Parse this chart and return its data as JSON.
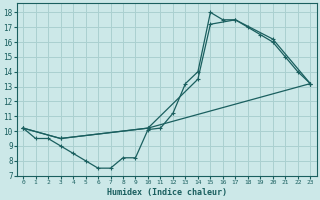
{
  "xlabel": "Humidex (Indice chaleur)",
  "bg_color": "#cce8e8",
  "grid_color": "#aad0d0",
  "line_color": "#1a5f5f",
  "xlim": [
    -0.5,
    23.5
  ],
  "ylim": [
    7,
    18.6
  ],
  "yticks": [
    7,
    8,
    9,
    10,
    11,
    12,
    13,
    14,
    15,
    16,
    17,
    18
  ],
  "xticks": [
    0,
    1,
    2,
    3,
    4,
    5,
    6,
    7,
    8,
    9,
    10,
    11,
    12,
    13,
    14,
    15,
    16,
    17,
    18,
    19,
    20,
    21,
    22,
    23
  ],
  "line1_x": [
    0,
    1,
    2,
    3,
    4,
    5,
    6,
    7,
    8,
    9,
    10,
    11,
    12,
    13,
    14,
    15,
    16,
    17,
    18,
    19,
    20,
    21,
    22,
    23
  ],
  "line1_y": [
    10.2,
    9.5,
    9.5,
    9.0,
    8.5,
    8.0,
    7.5,
    7.5,
    8.2,
    8.2,
    10.1,
    10.2,
    11.2,
    13.2,
    14.0,
    18.0,
    17.5,
    17.5,
    17.0,
    16.5,
    16.0,
    15.0,
    14.0,
    13.2
  ],
  "line2_x": [
    0,
    3,
    10,
    14,
    15,
    17,
    20,
    23
  ],
  "line2_y": [
    10.2,
    9.5,
    10.2,
    13.5,
    17.2,
    17.5,
    16.2,
    13.2
  ],
  "line3_x": [
    0,
    3,
    10,
    23
  ],
  "line3_y": [
    10.2,
    9.5,
    10.2,
    13.2
  ]
}
